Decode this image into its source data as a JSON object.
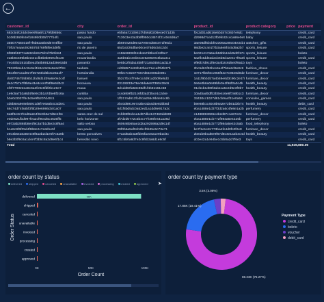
{
  "table": {
    "columns": [
      "customer_id",
      "city",
      "order_id",
      "product_id",
      "product category",
      "price",
      "payment"
    ],
    "rows": [
      [
        "683c54fc24d40ee9f8a6fc179fd9856c",
        "passo fundo",
        "e5fa5a7210941f7d56d0208e4e071d35",
        "f0c2d01abb16e5bd47c06b7e9dc",
        "telephony",
        "",
        "credit_card"
      ],
      [
        "b106b360fe2ef1849b0b05f777b4fc",
        "sao paulo",
        "7130c3e43a3b9ff050cc8574f2140e3d6a7",
        "d2998d7ced12fb9fe32c4ca66e0e5",
        "baby",
        "",
        "credit_card"
      ],
      [
        "355077684019f7f6b82a0b0d57e4ffbe",
        "sao paulo",
        "3b697a20d9e427e8e4d58c071f90d1",
        "3ae08df6bcbfe2306a188c04e3cb1",
        "watches_gifts",
        "",
        "credit_card"
      ],
      [
        "70fc57eaae29265793769f8f9e3d9f5",
        "rio de janeiro",
        "65d1e226dfaeb0ce476d6c54c2d4",
        "98dbe2c4e1f7b3a6e8f4c5d9a2b7",
        "sports_leisure",
        "",
        "credit_card"
      ],
      [
        "6f999f4377ca532cb6175fc1f7b0fe84",
        "sao paulo",
        "c158e9806f411b4a7d3bcef42f9e7",
        "be021417a6acb56bb44d45d0f17ca",
        "sports_leisure",
        "",
        "boleto"
      ],
      [
        "ea6b9c596b8b44e1cfb8b8b9691f6c30",
        "mozarlandia",
        "4a5b61bc04b0c3e5a96e9c8ba13c1",
        "6a2fb4dd53d2cb6b8d12e4c7f9a0b",
        "sports_leisure",
        "",
        "credit_card"
      ],
      [
        "7ec40b22510dbea1fa0b8912ad39e63d8",
        "panambi",
        "be5bc2f0da14b8f721a5d4551ad119",
        "ef80b7d9c1f8e3a4b2c6d5e0f9a1b3",
        "toys",
        "",
        "boleto"
      ],
      [
        "78120b6eb1c2e9ef4b84c9c9e9a3d7f2c",
        "taubate",
        "cd3b8574c82b42b4a71ecaf0f4b37b",
        "2bc5d61f92bce6a1f7b6a2d3e8c9",
        "fashion_shoes",
        "",
        "credit_card"
      ],
      [
        "b6c4f87ca1d9e7f55723bd6b3c28a1f7",
        "hortolandia",
        "09f2c7c02377667d66e006de891",
        "10717fb5f0c1955f64e7c96e8d0d2a",
        "furniture_decor",
        "",
        "credit_card"
      ],
      [
        "dc607467b5b6b11bd6d1d39a6e0e2c4f",
        "barueri",
        "3b2c7bc4f7e8e1c4d91a2b0f6e5d3",
        "1a11f9bb2b7a4b59e6d3c90c2e1f7",
        "furniture_decor",
        "",
        "credit_card"
      ],
      [
        "da1c7b7a7f8b9e41e8c4a7b8f9e6d3c2",
        "bocaiuva",
        "03128233e78ec8da6e87390439c9",
        "0e6e0b6a0e89bfe0e1f96f2a3c4b",
        "health_beauty",
        "",
        "credit_card"
      ],
      [
        "4f3f770022ea9c6a2fe9c5fdf2b1e9e7",
        "maua",
        "8d1dd60fa53e86df1f4b81161e68",
        "01d11b1d89f4ab11a5c2d9e3f0b7",
        "health_beauty",
        "",
        "credit_card"
      ],
      [
        "1e9c5a7b2a8d4f6e9c3b1a7d5e8f2c6a",
        "curitiba",
        "1c4deb9fb21c6fd3a1f3bce1c2d4e",
        "10a4bad0dfb2b0e4c6e8f7a9b1c3",
        "furniture_decor",
        "",
        "credit_card"
      ],
      [
        "b3e0c0037f5c5c5e9f5207d40c1",
        "sao paulo",
        "1ff217ad612fcd51a255c9b4e91c8b",
        "33430cc1027d81cb9a4f31e0a54",
        "consoles_games",
        "",
        "credit_card"
      ],
      [
        "cd5b6ea9e8eb69c1d8f7e6a5b4c3d2e1",
        "sao paulo",
        "2bc0d8919e7a3be3da4d4e83bb8d",
        "b9e88b1c40c8b9a2e72b61d2b74",
        "health_beauty",
        "",
        "debit_card"
      ],
      [
        "66c74d74fa5bf3f5b29e6986cb01a07",
        "sao paulo",
        "6d1f8bd5dc0a52ed1a1dd9e917a2c",
        "eba1488e1d37f3d2a6c4fe8e1a2b",
        "perfumery",
        "",
        "credit_card"
      ],
      [
        "6a5f9e3c7b1d8a2e4f6c9b3a7d5e1f8c",
        "santa cruz do sul",
        "21fd39f61b1a1d07db4137460dd839",
        "c1488893606e4b2d87c1a97e2e",
        "furniture_decor",
        "",
        "credit_card"
      ],
      [
        "e0de521fbd997fea2cf964d6c4635ff5",
        "belo horizonte",
        "3f7d2d0772c5b4c77fc98fe441a36d",
        "eba1488e1cb772f984a5e4225b",
        "perfumery",
        "",
        "credit_card"
      ],
      [
        "e972ab2865b8e4f9c3a7b1d5e2c8f6a4",
        "salto veloso",
        "460646b65ae2d2a292598a2d9c14f",
        "eba1488e1cb772f984a5e42c5ab",
        "food_telephony",
        "",
        "boleto"
      ],
      [
        "b1a9c9f6f05d4f9b8e2c7a3d1e5f",
        "sao paulo",
        "29f0b5a5af0cb2bcf0b35c6c73e71",
        "be7f1e1e8c773ba4fe4d0fc0f2e8",
        "furniture_decor",
        "",
        "credit_card"
      ],
      [
        "29c4b54a0a8e4c9f8a3b2d1e6f7c5a9b",
        "bento goncalves",
        "e7a3d5ab4a8fde5fa3c6a1e9b2d4c",
        "2b81b9b1d8e9f67d8c4e1a2b3c4d",
        "health_beauty",
        "",
        "credit_card"
      ],
      [
        "b8e2b0f9c6a1d4e7f3b5c8a2d9e6f1c4",
        "benedito novo",
        "6f1c5b0a8d7e2c9f4b3a6d1e8c5f",
        "dc0e42a1e94be1c5b8a2d7f6e3",
        "toys",
        "",
        "credit_card"
      ]
    ],
    "total_label": "Total",
    "total_value": "11,949,880.06"
  },
  "status_chart": {
    "title": "order count by status",
    "legend": [
      "delivered",
      "shipped",
      "canceled",
      "unavailable",
      "invoiced",
      "processing",
      "created",
      "approved"
    ],
    "xlabel": "Order Count",
    "ylabel": "Order Status",
    "ticks": [
      "0K",
      "50K",
      "100K"
    ],
    "bar_label": "96K"
  },
  "payment_chart": {
    "title": "order count by payment type",
    "legend_title": "Payment Type",
    "legend": [
      "credit_card",
      "boleto",
      "voucher",
      "debit_card"
    ],
    "label_voucher": "3.5K (3.08%)",
    "label_boleto": "17.85K (19.41%)",
    "label_credit": "69.23K (75.27%)"
  },
  "chart_data": [
    {
      "type": "bar",
      "title": "order count by status",
      "categories": [
        "delivered",
        "shipped",
        "canceled",
        "unavailable",
        "invoiced",
        "processing",
        "created",
        "approved"
      ],
      "values": [
        96478,
        1107,
        625,
        609,
        314,
        301,
        5,
        2
      ],
      "xlabel": "Order Count",
      "ylabel": "Order Status",
      "xlim": [
        0,
        100000
      ],
      "orientation": "horizontal",
      "colors": {
        "delivered": "#7de0c5",
        "other": "#f26a5a"
      }
    },
    {
      "type": "pie",
      "title": "order count by payment type",
      "labels": [
        "credit_card",
        "boleto",
        "voucher",
        "debit_card"
      ],
      "values": [
        75.27,
        19.41,
        3.08,
        2.24
      ],
      "colors": [
        "#c43bdc",
        "#2a6cf0",
        "#6a3fc8",
        "#f3a0c0"
      ],
      "donut": true,
      "legend_position": "right",
      "legend_title": "Payment Type"
    }
  ]
}
